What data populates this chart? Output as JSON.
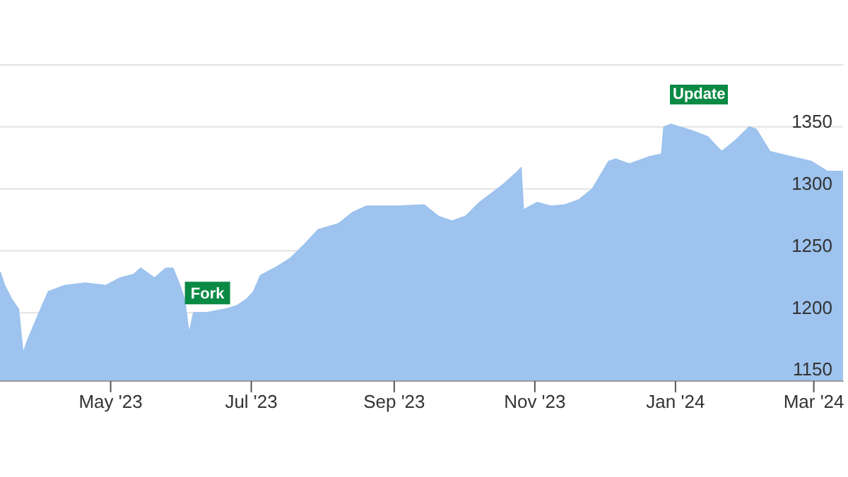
{
  "chart_data": {
    "type": "area",
    "x": [
      "2023-03-14",
      "2023-03-16",
      "2023-03-19",
      "2023-03-22",
      "2023-03-24",
      "2023-03-26",
      "2023-03-31",
      "2023-04-04",
      "2023-04-11",
      "2023-04-20",
      "2023-04-29",
      "2023-05-05",
      "2023-05-11",
      "2023-05-14",
      "2023-05-20",
      "2023-05-25",
      "2023-05-28",
      "2023-05-31",
      "2023-06-02",
      "2023-06-04",
      "2023-06-06",
      "2023-06-11",
      "2023-06-20",
      "2023-06-25",
      "2023-06-29",
      "2023-07-02",
      "2023-07-05",
      "2023-07-12",
      "2023-07-18",
      "2023-07-24",
      "2023-07-30",
      "2023-08-08",
      "2023-08-14",
      "2023-08-20",
      "2023-09-02",
      "2023-09-14",
      "2023-09-20",
      "2023-09-26",
      "2023-10-02",
      "2023-10-08",
      "2023-10-18",
      "2023-10-24",
      "2023-10-26",
      "2023-10-27",
      "2023-11-02",
      "2023-11-08",
      "2023-11-14",
      "2023-11-20",
      "2023-11-26",
      "2023-12-03",
      "2023-12-06",
      "2023-12-12",
      "2023-12-21",
      "2023-12-26",
      "2023-12-27",
      "2023-12-30",
      "2024-01-08",
      "2024-01-15",
      "2024-01-21",
      "2024-01-27",
      "2024-02-02",
      "2024-02-05",
      "2024-02-11",
      "2024-02-20",
      "2024-02-29",
      "2024-03-07",
      "2024-03-14"
    ],
    "series": [
      {
        "color": "#9dc3ee",
        "values": [
          1233,
          1222,
          1211,
          1203,
          1167,
          1178,
          1200,
          1217,
          1222,
          1224,
          1222,
          1228,
          1231,
          1236,
          1228,
          1236,
          1236,
          1222,
          1211,
          1183,
          1200,
          1200,
          1203,
          1206,
          1211,
          1217,
          1230,
          1237,
          1244,
          1255,
          1267,
          1272,
          1281,
          1286,
          1286,
          1287,
          1278,
          1274,
          1278,
          1289,
          1303,
          1313,
          1317,
          1283,
          1289,
          1286,
          1287,
          1291,
          1300,
          1322,
          1324,
          1320,
          1326,
          1328,
          1350,
          1352,
          1347,
          1342,
          1330,
          1339,
          1350,
          1348,
          1330,
          1326,
          1322,
          1314,
          1314
        ]
      }
    ],
    "xlim": [
      "2023-03-14",
      "2024-03-14"
    ],
    "xticks": [
      {
        "value": "2023-05-01",
        "label": "May '23"
      },
      {
        "value": "2023-07-01",
        "label": "Jul '23"
      },
      {
        "value": "2023-09-01",
        "label": "Sep '23"
      },
      {
        "value": "2023-11-01",
        "label": "Nov '23"
      },
      {
        "value": "2024-01-01",
        "label": "Jan '24"
      },
      {
        "value": "2024-03-01",
        "label": "Mar '24"
      }
    ],
    "ylim": [
      1145,
      1400
    ],
    "yticks": [
      1150,
      1200,
      1250,
      1300,
      1350,
      {
        "value": 1400,
        "label": null
      }
    ],
    "grid": "y",
    "legend": false,
    "annotations": [
      {
        "text": "Fork",
        "x": "2023-06-12",
        "y": 1216
      },
      "Update"
    ]
  }
}
